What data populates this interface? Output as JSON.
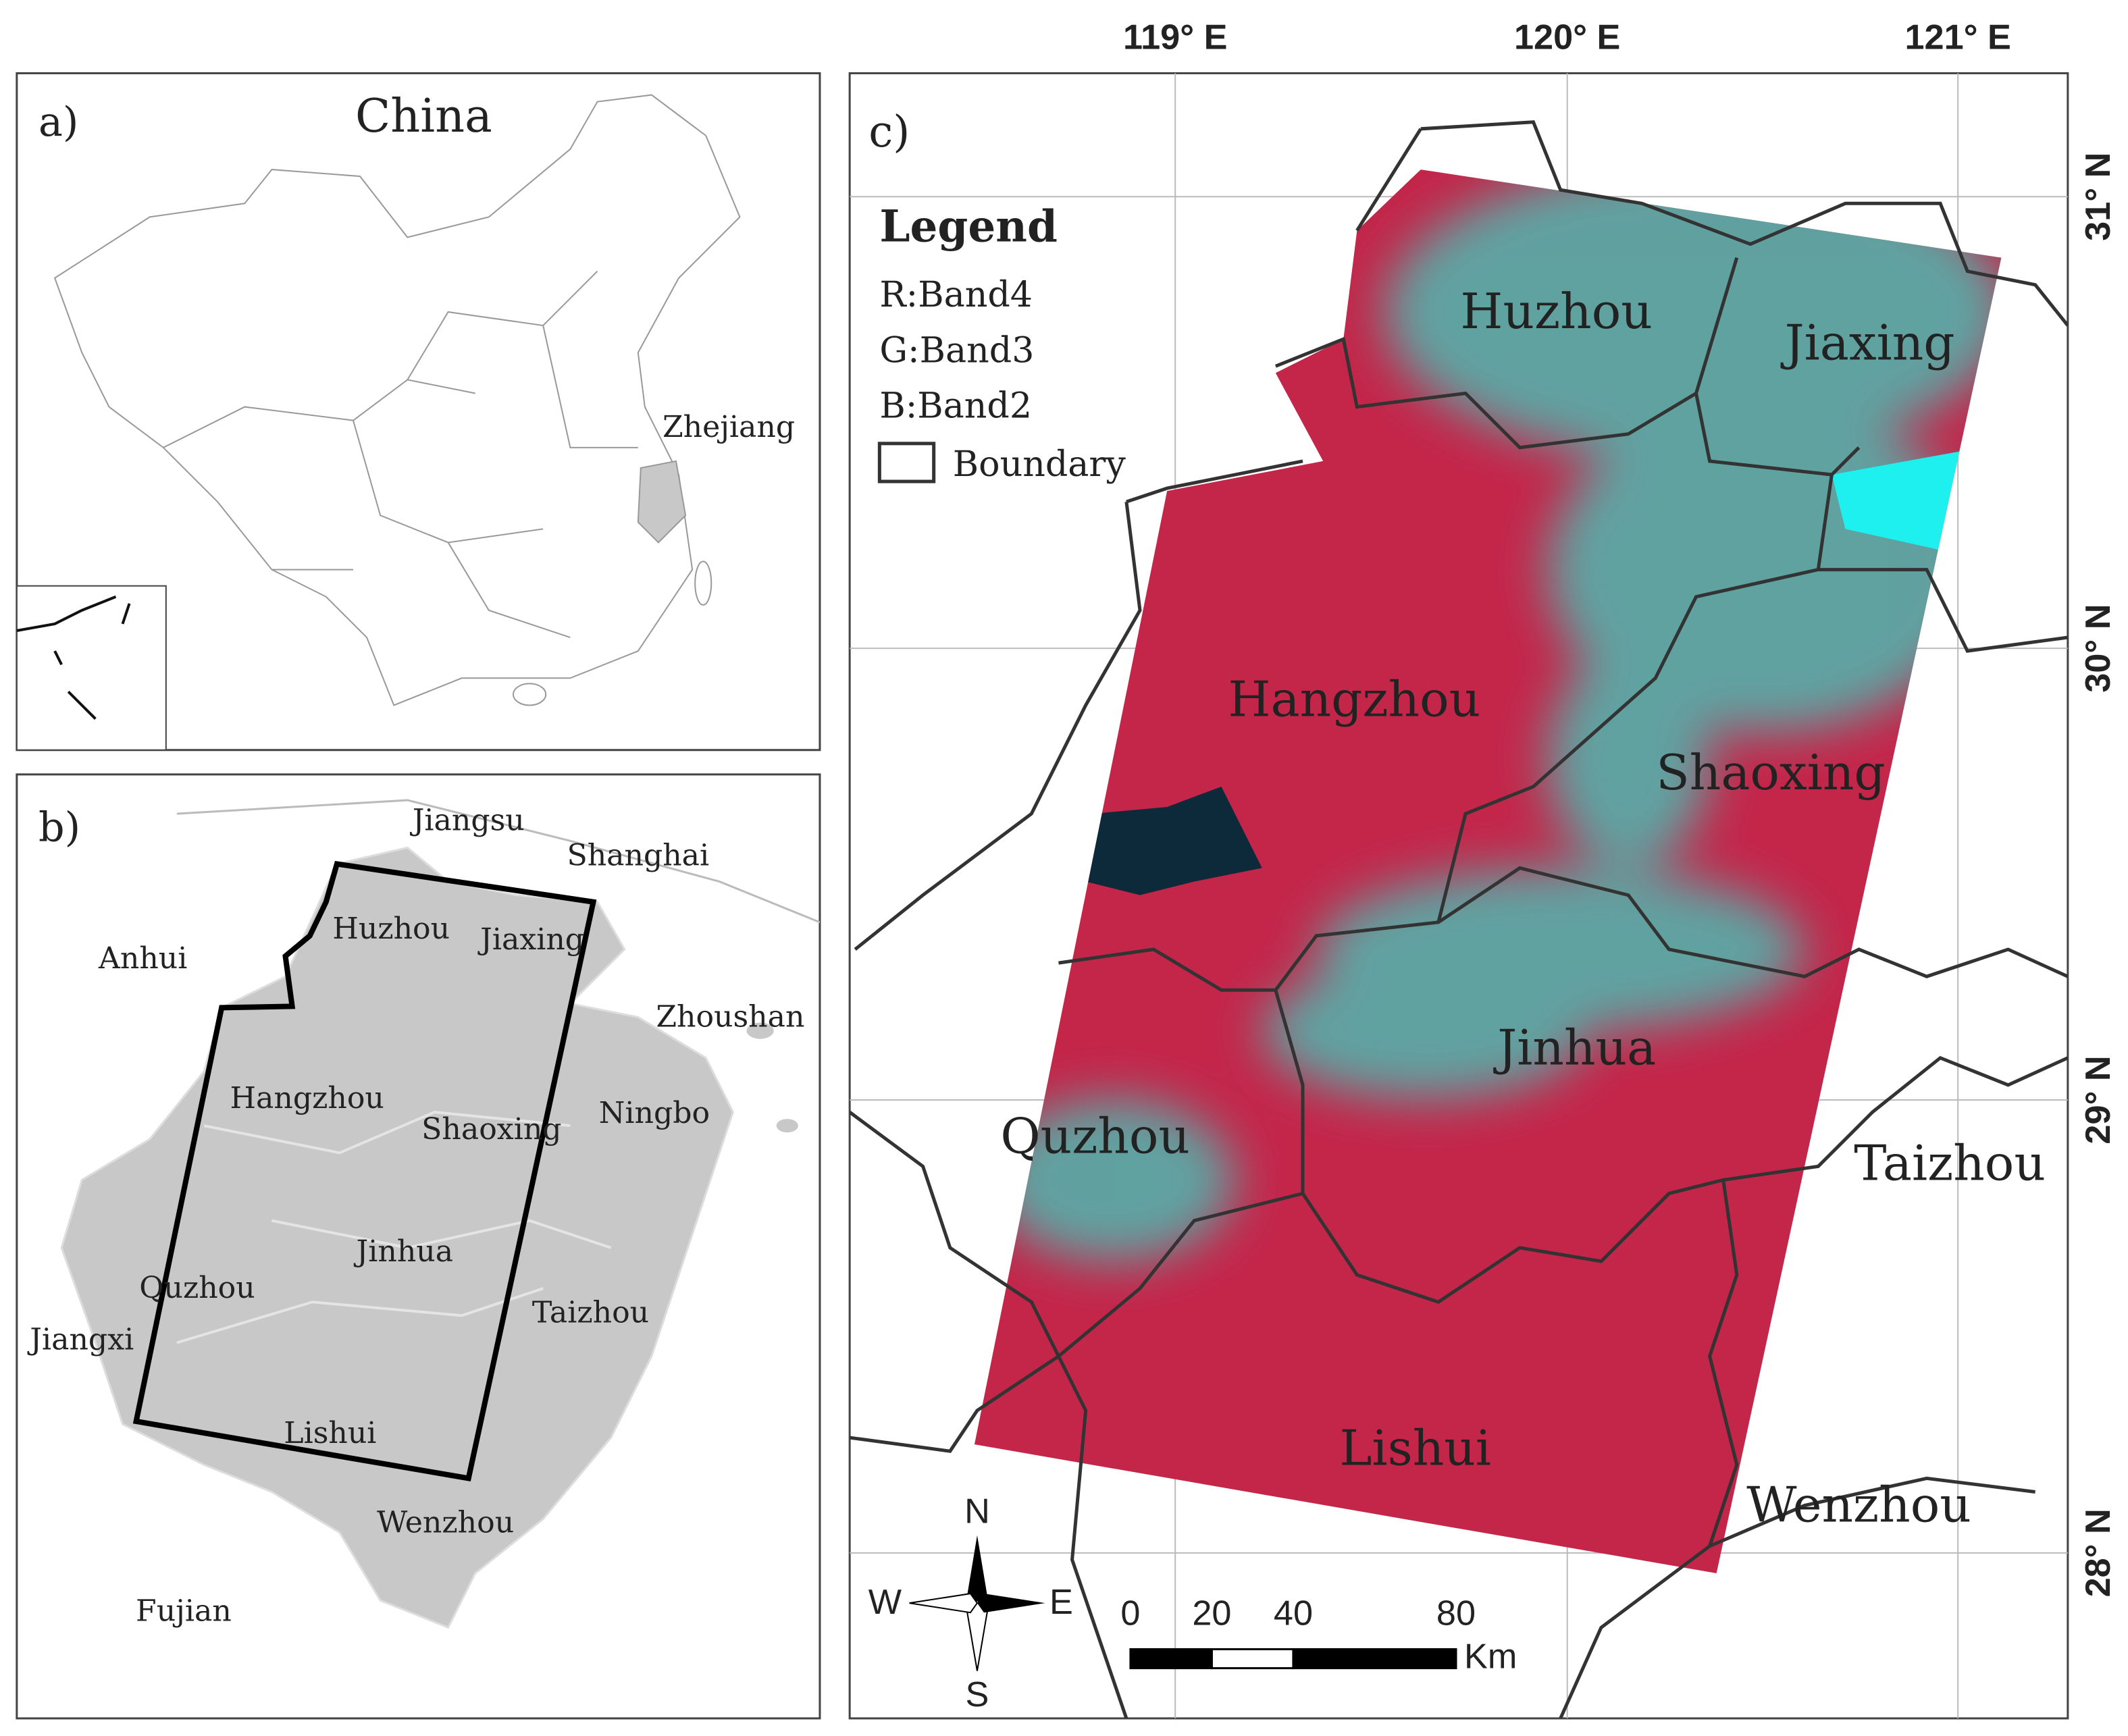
{
  "panel_a": {
    "label": "a)",
    "title": "China",
    "places": [
      "Zhejiang"
    ]
  },
  "panel_b": {
    "label": "b)",
    "places": [
      "Jiangsu",
      "Shanghai",
      "Anhui",
      "Huzhou",
      "Jiaxing",
      "Zhoushan",
      "Hangzhou",
      "Shaoxing",
      "Ningbo",
      "Jinhua",
      "Quzhou",
      "Taizhou",
      "Jiangxi",
      "Lishui",
      "Wenzhou",
      "Fujian"
    ]
  },
  "panel_c": {
    "label": "c)",
    "legend": {
      "title": "Legend",
      "items": [
        "R:Band4",
        "G:Band3",
        "B:Band2",
        "Boundary"
      ]
    },
    "lon_labels": [
      "119° E",
      "120° E",
      "121° E"
    ],
    "lat_labels": [
      "31° N",
      "30° N",
      "29° N",
      "28° N"
    ],
    "places": [
      "Huzhou",
      "Jiaxing",
      "Hangzhou",
      "Shaoxing",
      "Jinhua",
      "Quzhou",
      "Taizhou",
      "Lishui",
      "Wenzhou"
    ],
    "compass": [
      "N",
      "S",
      "W",
      "E"
    ],
    "scale": {
      "ticks": [
        0,
        20,
        40,
        80
      ],
      "unit": "Km"
    }
  }
}
